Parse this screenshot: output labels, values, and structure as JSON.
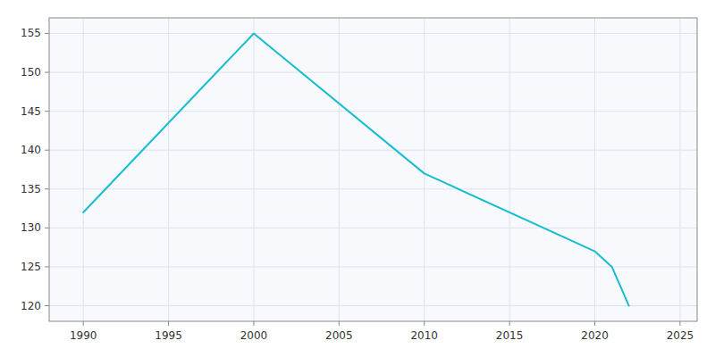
{
  "chart_data": {
    "type": "line",
    "x": [
      1990,
      2000,
      2010,
      2020,
      2021,
      2022
    ],
    "values": [
      132,
      155,
      137,
      127,
      125,
      120
    ],
    "color": "#17BECF",
    "xlim": [
      1988,
      2026
    ],
    "ylim": [
      118,
      157
    ],
    "xticks": [
      1990,
      1995,
      2000,
      2005,
      2010,
      2015,
      2020,
      2025
    ],
    "yticks": [
      120,
      125,
      130,
      135,
      140,
      145,
      150,
      155
    ],
    "grid": true
  }
}
